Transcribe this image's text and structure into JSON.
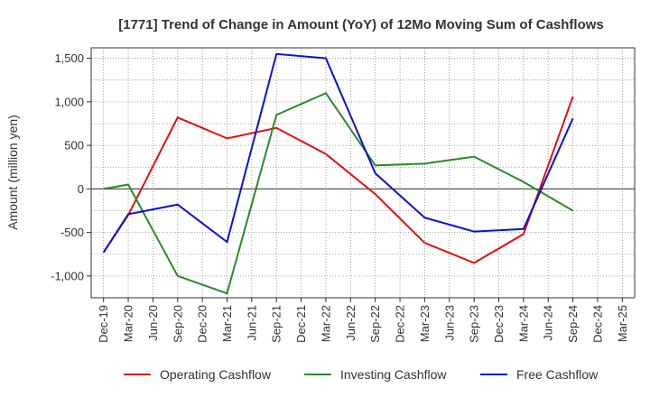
{
  "chart_data": {
    "type": "line",
    "title": "[1771]  Trend of Change in Amount (YoY) of 12Mo Moving Sum of Cashflows",
    "xlabel": "",
    "ylabel": "Amount (million yen)",
    "ylim": [
      -1250,
      1620
    ],
    "yticks": [
      -1000,
      -500,
      0,
      500,
      1000,
      1500
    ],
    "ytick_labels": [
      "-1,000",
      "-500",
      "0",
      "500",
      "1,000",
      "1,500"
    ],
    "grid": true,
    "legend_position": "bottom",
    "categories": [
      "Dec-19",
      "Mar-20",
      "Jun-20",
      "Sep-20",
      "Dec-20",
      "Mar-21",
      "Jun-21",
      "Sep-21",
      "Dec-21",
      "Mar-22",
      "Jun-22",
      "Sep-22",
      "Dec-22",
      "Mar-23",
      "Jun-23",
      "Sep-23",
      "Dec-23",
      "Mar-24",
      "Jun-24",
      "Sep-24",
      "Dec-24",
      "Mar-25"
    ],
    "series": [
      {
        "name": "Operating Cashflow",
        "color": "#dd1111",
        "values": [
          -730,
          -300,
          null,
          820,
          null,
          580,
          null,
          700,
          null,
          400,
          null,
          -60,
          null,
          -620,
          null,
          -850,
          null,
          -520,
          null,
          1060,
          null,
          null
        ]
      },
      {
        "name": "Investing Cashflow",
        "color": "#2a8a2a",
        "values": [
          0,
          50,
          null,
          -1000,
          null,
          -1200,
          null,
          850,
          null,
          1100,
          null,
          270,
          null,
          290,
          null,
          370,
          null,
          80,
          null,
          -250,
          null,
          null
        ]
      },
      {
        "name": "Free Cashflow",
        "color": "#1111cc",
        "values": [
          -730,
          -290,
          null,
          -180,
          null,
          -610,
          null,
          1550,
          null,
          1500,
          null,
          180,
          null,
          -330,
          null,
          -490,
          null,
          -460,
          null,
          810,
          null,
          null
        ]
      }
    ]
  }
}
